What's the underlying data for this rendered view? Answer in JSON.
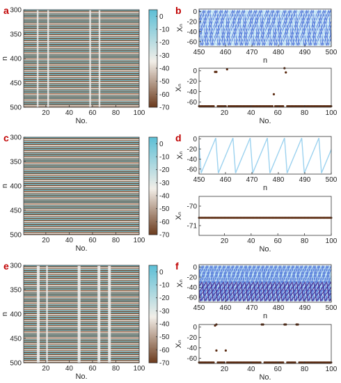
{
  "panels": {
    "a": "a",
    "b": "b",
    "c": "c",
    "d": "d",
    "e": "e",
    "f": "f"
  },
  "colors": {
    "cyan": "#6cc6d8",
    "light_cyan": "#a9dff0",
    "brown": "#6b3a1c",
    "dot": "#5a2a10",
    "blue": "#3f6fd6",
    "light_blue": "#9cd2ef",
    "purple": "#4a2a8c"
  },
  "chart_data": [
    {
      "id": "a",
      "type": "heatmap",
      "title": "",
      "xlabel": "No.",
      "ylabel": "n",
      "xlim": [
        1,
        100
      ],
      "ylim": [
        300,
        500
      ],
      "xticks": [
        20,
        40,
        60,
        80,
        100
      ],
      "yticks": [
        300,
        350,
        400,
        450,
        500
      ],
      "colorbar": {
        "range": [
          -70,
          5
        ],
        "ticks": [
          0,
          -10,
          -20,
          -30,
          -40,
          -50,
          -60,
          -70
        ]
      },
      "bright_columns": [
        13,
        22,
        58,
        66
      ]
    },
    {
      "id": "b_top",
      "type": "line",
      "xlabel": "n",
      "ylabel": "Xₙ",
      "xlim": [
        450,
        500
      ],
      "ylim": [
        -70,
        5
      ],
      "xticks": [
        450,
        460,
        470,
        480,
        490,
        500
      ],
      "yticks": [
        0,
        -20,
        -40,
        -60
      ],
      "period": 6.5
    },
    {
      "id": "b_bottom",
      "type": "scatter",
      "xlabel": "No.",
      "ylabel": "Xₙ",
      "xlim": [
        1,
        100
      ],
      "ylim": [
        -70,
        5
      ],
      "xticks": [
        20,
        40,
        60,
        80,
        100
      ],
      "yticks": [
        0,
        -20,
        -40,
        -60
      ],
      "baseline": -68,
      "outliers": [
        {
          "x": 13,
          "y": -2
        },
        {
          "x": 14,
          "y": -2
        },
        {
          "x": 22,
          "y": 3
        },
        {
          "x": 57,
          "y": -45
        },
        {
          "x": 65,
          "y": 5
        },
        {
          "x": 66,
          "y": -3
        }
      ]
    },
    {
      "id": "c",
      "type": "heatmap",
      "title": "",
      "xlabel": "No.",
      "ylabel": "n",
      "xlim": [
        1,
        100
      ],
      "ylim": [
        300,
        500
      ],
      "xticks": [
        20,
        40,
        60,
        80,
        100
      ],
      "yticks": [
        300,
        350,
        400,
        450,
        500
      ],
      "colorbar": {
        "range": [
          -70,
          5
        ],
        "ticks": [
          0,
          -10,
          -20,
          -30,
          -40,
          -50,
          -60,
          -70
        ]
      },
      "bright_columns": []
    },
    {
      "id": "d_top",
      "type": "line",
      "xlabel": "n",
      "ylabel": "Xₙ",
      "xlim": [
        450,
        500
      ],
      "ylim": [
        -70,
        5
      ],
      "xticks": [
        450,
        460,
        470,
        480,
        490,
        500
      ],
      "yticks": [
        0,
        -20,
        -40,
        -60
      ],
      "period": 6.5
    },
    {
      "id": "d_bottom",
      "type": "scatter",
      "xlabel": "No.",
      "ylabel": "Xₙ",
      "xlim": [
        1,
        100
      ],
      "ylim": [
        -71.5,
        -69.5
      ],
      "xticks": [
        20,
        40,
        60,
        80,
        100
      ],
      "yticks": [
        -70,
        -71
      ],
      "baseline": -70.6,
      "outliers": []
    },
    {
      "id": "e",
      "type": "heatmap",
      "title": "",
      "xlabel": "No.",
      "ylabel": "n",
      "xlim": [
        1,
        100
      ],
      "ylim": [
        300,
        500
      ],
      "xticks": [
        20,
        40,
        60,
        80,
        100
      ],
      "yticks": [
        300,
        350,
        400,
        450,
        500
      ],
      "colorbar": {
        "range": [
          -70,
          5
        ],
        "ticks": [
          0,
          -10,
          -20,
          -30,
          -40,
          -50,
          -60,
          -70
        ]
      },
      "bright_columns": [
        13,
        14,
        21,
        48,
        49,
        65,
        66,
        74,
        75
      ]
    },
    {
      "id": "f_top",
      "type": "line",
      "xlabel": "n",
      "ylabel": "Xₙ",
      "xlim": [
        450,
        500
      ],
      "ylim": [
        -70,
        5
      ],
      "xticks": [
        450,
        460,
        470,
        480,
        490,
        500
      ],
      "yticks": [
        0,
        -20,
        -40,
        -60
      ],
      "period": 6.5
    },
    {
      "id": "f_bottom",
      "type": "scatter",
      "xlabel": "No.",
      "ylabel": "Xₙ",
      "xlim": [
        1,
        100
      ],
      "ylim": [
        -70,
        5
      ],
      "xticks": [
        20,
        40,
        60,
        80,
        100
      ],
      "yticks": [
        0,
        -20,
        -40,
        -60
      ],
      "baseline": -68,
      "outliers": [
        {
          "x": 13,
          "y": 3
        },
        {
          "x": 14,
          "y": 5
        },
        {
          "x": 14,
          "y": -45
        },
        {
          "x": 21,
          "y": -45
        },
        {
          "x": 48,
          "y": 5
        },
        {
          "x": 49,
          "y": 5
        },
        {
          "x": 65,
          "y": 5
        },
        {
          "x": 66,
          "y": 5
        },
        {
          "x": 74,
          "y": 5
        },
        {
          "x": 75,
          "y": 5
        }
      ]
    }
  ]
}
